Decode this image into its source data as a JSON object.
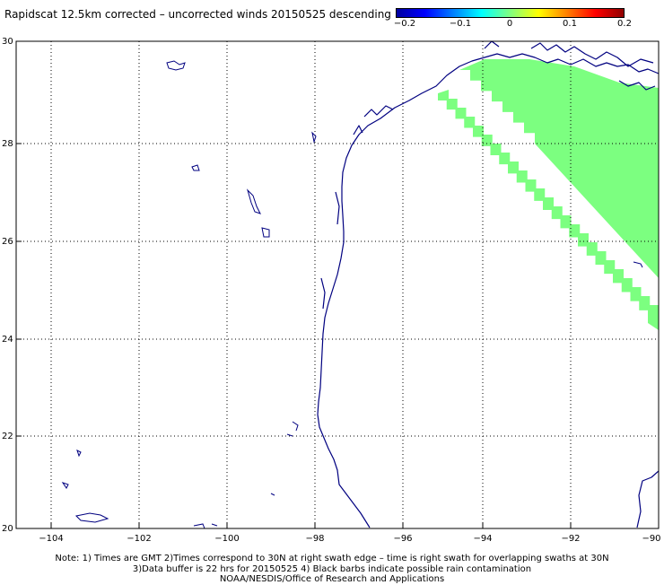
{
  "title": "Rapidscat 12.5km corrected – uncorrected winds 20150525 descending",
  "colorbar": {
    "colors": [
      "#0000a0",
      "#0000ff",
      "#0080ff",
      "#00ffff",
      "#80ff80",
      "#ffff00",
      "#ff8000",
      "#ff0000",
      "#900000"
    ],
    "labels": [
      "−0.2",
      "−0.1",
      "0",
      "0.1",
      "0.2"
    ]
  },
  "map": {
    "lat_labels": [
      "30",
      "28",
      "26",
      "24",
      "22",
      "20"
    ],
    "lon_labels": [
      "−104",
      "−102",
      "−100",
      "−98",
      "−96",
      "−94",
      "−92",
      "−90"
    ],
    "swath_color": "#7cff80",
    "coast_color": "#000080"
  },
  "notes": [
    "Note: 1) Times are GMT 2)Times correspond to 30N at right swath edge – time is right swath for overlapping swaths at 30N",
    "3)Data buffer is 22 hrs for 20150525 4) Black barbs indicate possible rain contamination",
    "NOAA/NESDIS/Office of Research and Applications"
  ]
}
